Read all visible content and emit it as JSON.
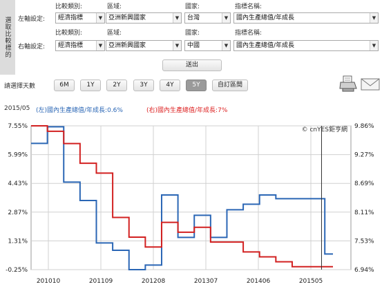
{
  "side_tab_label": "選取比較標的",
  "form": {
    "left_axis_label": "左軸設定:",
    "right_axis_label": "右軸設定:",
    "col_headers": [
      "比較類別:",
      "區域:",
      "國家:",
      "指標名稱:"
    ],
    "left": {
      "category": "經濟指標",
      "region": "亞洲新興國家",
      "country": "台灣",
      "indicator": "國內生產總值/年成長"
    },
    "right": {
      "category": "經濟指標",
      "region": "亞洲新興國家",
      "country": "中國",
      "indicator": "國內生產總值/年成長"
    },
    "submit_label": "送出"
  },
  "range": {
    "label": "請選擇天數",
    "buttons": [
      "6M",
      "1Y",
      "2Y",
      "3Y",
      "4Y",
      "5Y",
      "自訂區間"
    ],
    "active": "5Y"
  },
  "icons": [
    "printer-icon",
    "mail-icon"
  ],
  "chart_header": {
    "date": "2015/05",
    "left_legend": "(左)國內生產總值/年成長:0.6%",
    "right_legend": "(右)國內生產總值/年成長:7%"
  },
  "colors": {
    "left_series": "#2a66b5",
    "right_series": "#d22020",
    "grid": "#d0d0d0",
    "cursor": "#333333"
  },
  "chart_data": {
    "type": "line",
    "watermark": "© cnYES鉅亨網",
    "x_tick_labels": [
      "201010",
      "201109",
      "201208",
      "201307",
      "201406",
      "201505"
    ],
    "left_axis_ticks": [
      "7.55%",
      "5.99%",
      "4.43%",
      "2.87%",
      "1.31%",
      "-0.25%"
    ],
    "right_axis_ticks": [
      "9.86%",
      "9.27%",
      "8.69%",
      "8.11%",
      "7.53%",
      "6.94%"
    ],
    "left_ylim": [
      -0.25,
      7.55
    ],
    "right_ylim": [
      6.94,
      9.86
    ],
    "x_range": [
      0,
      19.6
    ],
    "series": [
      {
        "name": "(左)國內生產總值/年成長",
        "axis": "left",
        "color": "#2a66b5",
        "points": [
          [
            0,
            6.6
          ],
          [
            1,
            7.5
          ],
          [
            2,
            4.5
          ],
          [
            3,
            3.5
          ],
          [
            4,
            1.2
          ],
          [
            5,
            0.8
          ],
          [
            6,
            -0.25
          ],
          [
            7,
            0
          ],
          [
            8,
            3.8
          ],
          [
            9,
            1.5
          ],
          [
            10,
            2.7
          ],
          [
            11,
            1.5
          ],
          [
            12,
            3.0
          ],
          [
            13,
            3.3
          ],
          [
            14,
            3.8
          ],
          [
            15,
            3.6
          ],
          [
            16,
            3.6
          ],
          [
            17,
            3.6
          ],
          [
            18,
            0.6
          ],
          [
            18.5,
            0.6
          ]
        ]
      },
      {
        "name": "(右)國內生產總值/年成長",
        "axis": "right",
        "color": "#d22020",
        "points": [
          [
            0,
            9.86
          ],
          [
            1,
            9.75
          ],
          [
            2,
            9.5
          ],
          [
            3,
            9.1
          ],
          [
            4,
            8.9
          ],
          [
            5,
            8.0
          ],
          [
            6,
            7.6
          ],
          [
            7,
            7.4
          ],
          [
            8,
            7.9
          ],
          [
            9,
            7.7
          ],
          [
            10,
            7.8
          ],
          [
            11,
            7.5
          ],
          [
            12,
            7.5
          ],
          [
            13,
            7.3
          ],
          [
            14,
            7.2
          ],
          [
            15,
            7.1
          ],
          [
            16,
            7.0
          ],
          [
            17,
            7.0
          ],
          [
            18,
            7.0
          ],
          [
            18.5,
            7.0
          ]
        ]
      }
    ]
  }
}
